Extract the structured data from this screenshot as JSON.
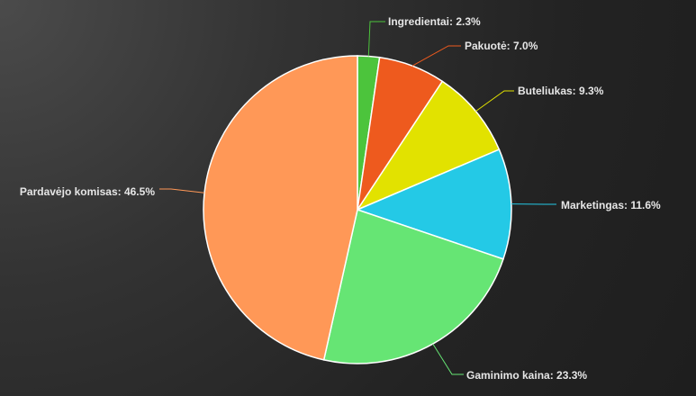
{
  "chart_data": {
    "type": "pie",
    "categories": [
      "Ingredientai",
      "Pakuotė",
      "Buteliukas",
      "Marketingas",
      "Gaminimo kaina",
      "Pardavėjo komisas"
    ],
    "values": [
      2.3,
      7.0,
      9.3,
      11.6,
      23.3,
      46.5
    ],
    "labels": [
      "Ingredientai: 2.3%",
      "Pakuotė: 7.0%",
      "Buteliukas: 9.3%",
      "Marketingas: 11.6%",
      "Gaminimo kaina: 23.3%",
      "Pardavėjo komisas: 46.5%"
    ],
    "colors": [
      "#4cc43c",
      "#ee5a1e",
      "#e2e200",
      "#24c9e6",
      "#66e574",
      "#ff9857"
    ],
    "start_angle_deg": 0,
    "direction": "clockwise",
    "legend": "none"
  }
}
